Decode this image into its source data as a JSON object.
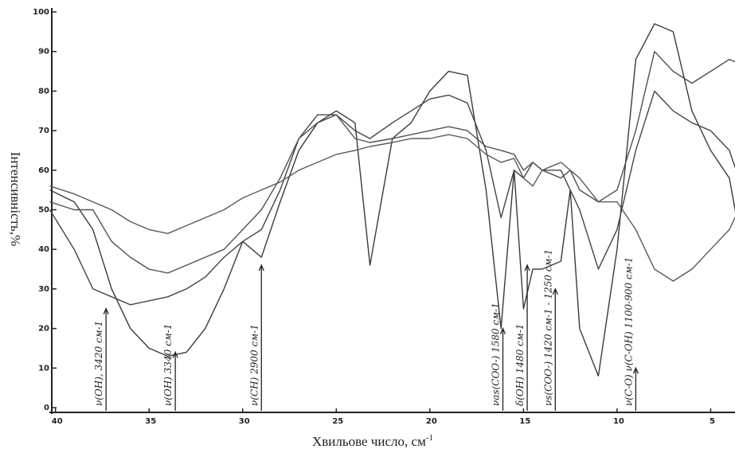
{
  "chart_data": {
    "type": "line",
    "ylabel": "Інтенсивність,%",
    "xlabel": "Хвильове число, см",
    "xlabel_superscript": "-1",
    "x": [
      40.3,
      39,
      38,
      37,
      36,
      35,
      34,
      33,
      32,
      31,
      30,
      29,
      28,
      27,
      26,
      25,
      24,
      23.2,
      22,
      21,
      20,
      19,
      18,
      17,
      16.2,
      15.5,
      15,
      14.5,
      14,
      13,
      12.5,
      12,
      11,
      10,
      9,
      8,
      7,
      6,
      5,
      4,
      3.5
    ],
    "series": [
      {
        "color": "#3a3a3a",
        "values": [
          55,
          52,
          45,
          30,
          20,
          15,
          13,
          14,
          20,
          30,
          42,
          38,
          52,
          65,
          72,
          75,
          72,
          36,
          68,
          72,
          80,
          85,
          84,
          55,
          20,
          60,
          25,
          35,
          35,
          37,
          55,
          20,
          8,
          40,
          88,
          97,
          95,
          75,
          65,
          58,
          45
        ]
      },
      {
        "color": "#444444",
        "values": [
          50,
          40,
          30,
          28,
          26,
          27,
          28,
          30,
          33,
          38,
          42,
          45,
          55,
          68,
          74,
          74,
          70,
          68,
          72,
          75,
          78,
          79,
          77,
          65,
          48,
          60,
          58,
          62,
          60,
          60,
          55,
          50,
          35,
          45,
          65,
          80,
          75,
          72,
          70,
          65,
          58
        ]
      },
      {
        "color": "#505050",
        "values": [
          52,
          50,
          50,
          42,
          38,
          35,
          34,
          36,
          38,
          40,
          45,
          50,
          58,
          68,
          72,
          74,
          68,
          67,
          68,
          69,
          70,
          71,
          70,
          66,
          65,
          64,
          60,
          62,
          60,
          58,
          60,
          55,
          52,
          55,
          70,
          90,
          85,
          82,
          85,
          88,
          87
        ]
      },
      {
        "color": "#5a5a5a",
        "values": [
          56,
          54,
          52,
          50,
          47,
          45,
          44,
          46,
          48,
          50,
          53,
          55,
          57,
          60,
          62,
          64,
          65,
          66,
          67,
          68,
          68,
          69,
          68,
          64,
          62,
          63,
          58,
          56,
          60,
          62,
          60,
          58,
          52,
          52,
          45,
          35,
          32,
          35,
          40,
          45,
          50
        ]
      }
    ],
    "xlim": [
      40.2,
      3.7
    ],
    "ylim": [
      0,
      100
    ],
    "xticks": [
      40,
      35,
      30,
      25,
      20,
      15,
      10,
      5
    ],
    "yticks": [
      0,
      10,
      20,
      30,
      40,
      50,
      60,
      70,
      80,
      90,
      100
    ],
    "annotations": [
      {
        "text": "ν(OH), 3420 см-1",
        "x": 37.3,
        "y": 25
      },
      {
        "text": "ν(OH) 3340 см-1",
        "x": 33.6,
        "y": 14
      },
      {
        "text": "ν(CH) 2900 см-1",
        "x": 29,
        "y": 36
      },
      {
        "text": "νas(COO-) 1580 см-1",
        "x": 16.1,
        "y": 20
      },
      {
        "text": "δ(OH) 1480 см-1",
        "x": 14.8,
        "y": 36
      },
      {
        "text": "νs(COO-) 1420 см-1 - 1250 см-1",
        "x": 13.3,
        "y": 30
      },
      {
        "text": "ν(C-O) ν(C-OH) 1100-900 см-1",
        "x": 9.0,
        "y": 10
      }
    ]
  }
}
